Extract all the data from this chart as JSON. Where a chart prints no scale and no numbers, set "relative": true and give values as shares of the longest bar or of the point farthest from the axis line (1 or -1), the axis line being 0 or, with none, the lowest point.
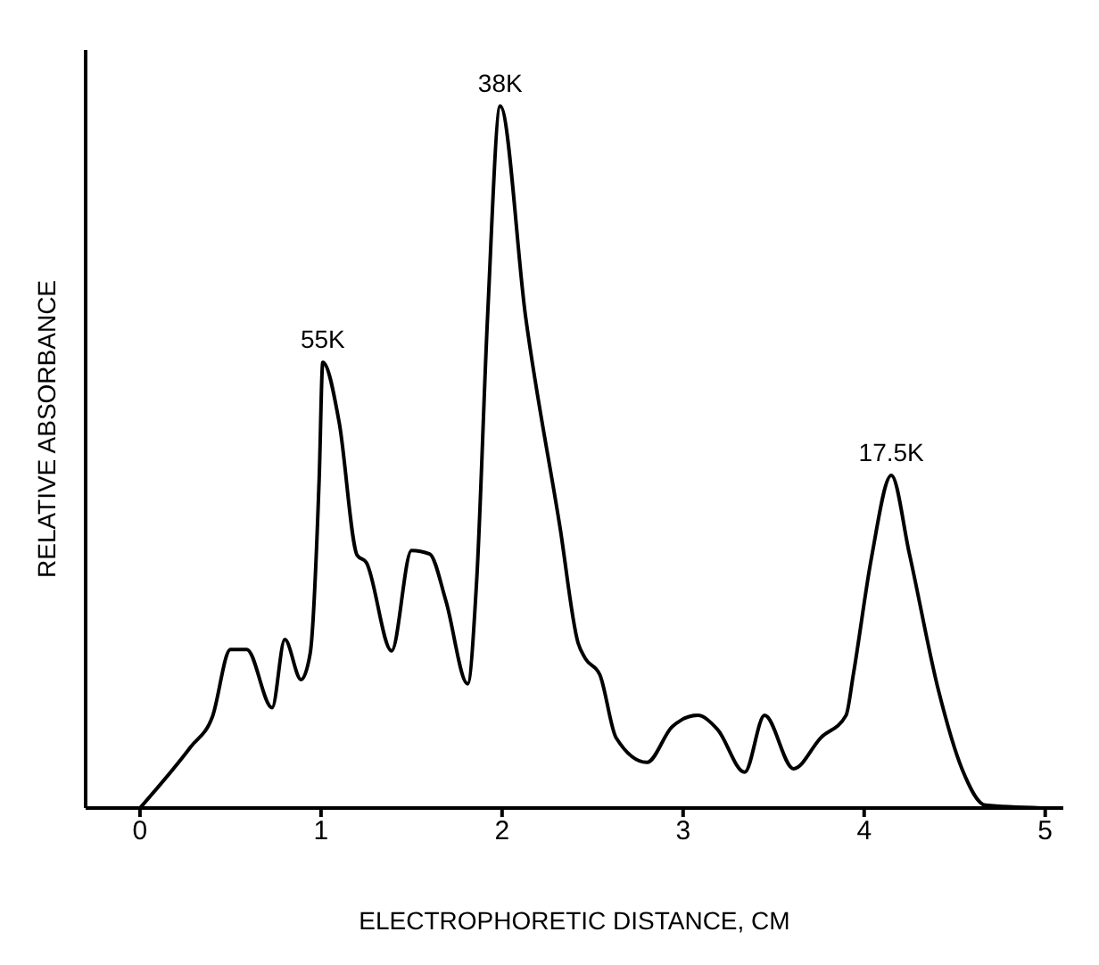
{
  "chart_data": {
    "type": "line",
    "xlabel": "ELECTROPHORETIC DISTANCE, CM",
    "ylabel": "RELATIVE ABSORBANCE",
    "relative": true,
    "xlim": [
      -0.3,
      5.1
    ],
    "xticks": [
      0,
      1,
      2,
      3,
      4,
      5
    ],
    "marker": "none",
    "line_style": "solid",
    "annotations": [
      {
        "text": "55K",
        "x": 1.01,
        "y": 0.635
      },
      {
        "text": "38K",
        "x": 1.99,
        "y": 1.0
      },
      {
        "text": "17.5K",
        "x": 4.15,
        "y": 0.474
      }
    ],
    "series": [
      {
        "color": "#000000",
        "x": [
          0,
          0.28,
          0.4,
          0.5,
          0.59,
          0.73,
          0.8,
          0.89,
          0.94,
          0.99,
          1.01,
          1.1,
          1.2,
          1.25,
          1.39,
          1.5,
          1.6,
          1.69,
          1.81,
          1.86,
          1.92,
          1.99,
          2.13,
          2.32,
          2.42,
          2.46,
          2.54,
          2.63,
          2.8,
          2.94,
          3.08,
          3.19,
          3.34,
          3.45,
          3.61,
          3.76,
          3.9,
          3.94,
          4.04,
          4.15,
          4.25,
          4.41,
          4.54,
          4.67,
          4.98
        ],
        "values": [
          0,
          0.087,
          0.13,
          0.226,
          0.226,
          0.143,
          0.24,
          0.183,
          0.22,
          0.47,
          0.635,
          0.55,
          0.36,
          0.35,
          0.224,
          0.367,
          0.362,
          0.295,
          0.177,
          0.325,
          0.7,
          1.0,
          0.7,
          0.4,
          0.235,
          0.213,
          0.19,
          0.1,
          0.065,
          0.116,
          0.132,
          0.112,
          0.051,
          0.132,
          0.056,
          0.1,
          0.132,
          0.19,
          0.356,
          0.474,
          0.362,
          0.168,
          0.056,
          0.004,
          0
        ]
      }
    ]
  }
}
